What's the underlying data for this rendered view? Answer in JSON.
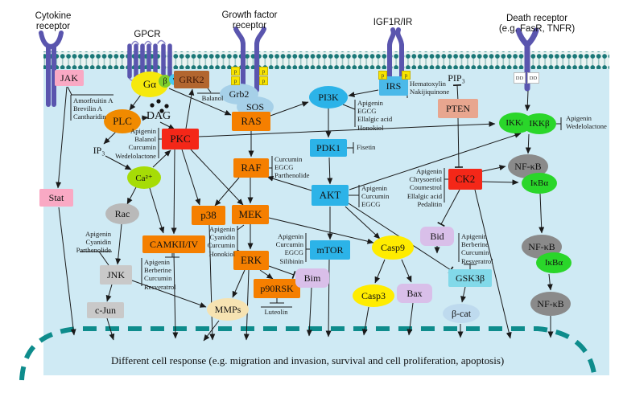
{
  "figure": {
    "bottom_text": "Different cell response (e.g. migration and  invasion, survival and cell proliferation, apoptosis)",
    "cell_color": "#cfeaf4",
    "membrane_head_color": "#1b7878",
    "nucleus_border_color": "#0e8c8c",
    "receptor_color": "#5a55ae"
  },
  "tags": {
    "phospho": "p",
    "death_domain": "DD"
  },
  "receptor_headers": [
    {
      "id": "cytokine",
      "lines": [
        "Cytokine",
        "receptor"
      ]
    },
    {
      "id": "gpcr",
      "lines": [
        "GPCR"
      ]
    },
    {
      "id": "gfr",
      "lines": [
        "Growth factor",
        "receptor"
      ]
    },
    {
      "id": "igf1r",
      "lines": [
        "IGF1R/IR"
      ]
    },
    {
      "id": "death",
      "lines": [
        "Death receptor",
        "(e.g. FasR, TNFR)"
      ]
    }
  ],
  "nodes": [
    {
      "id": "jak",
      "label": "JAK",
      "color": "#f9a9c4",
      "shape": "box"
    },
    {
      "id": "stat",
      "label": "Stat",
      "color": "#f9a9c4",
      "shape": "box"
    },
    {
      "id": "galpha",
      "label": "Gα",
      "color": "#f6e90c",
      "shape": "ellipse"
    },
    {
      "id": "gbeta",
      "label": "β",
      "color": "#7fd02c",
      "shape": "ellipse"
    },
    {
      "id": "ggamma",
      "label": "γ",
      "color": "#49c9ef",
      "shape": "ellipse"
    },
    {
      "id": "grk2",
      "label": "GRK2",
      "color": "#b2662f",
      "shape": "box"
    },
    {
      "id": "plc",
      "label": "PLC",
      "color": "#f08a00",
      "shape": "ellipse"
    },
    {
      "id": "dag",
      "label": "DAG",
      "color": "",
      "shape": "text"
    },
    {
      "id": "ip3",
      "label": "IP₃",
      "color": "",
      "shape": "text"
    },
    {
      "id": "pip3",
      "label": "PIP₃",
      "color": "",
      "shape": "text"
    },
    {
      "id": "pkc",
      "label": "PKC",
      "color": "#f42718",
      "shape": "box"
    },
    {
      "id": "camk",
      "label": "CAMKII/IV",
      "color": "#f57f00",
      "shape": "box"
    },
    {
      "id": "ca",
      "label": "Ca²⁺",
      "color": "#a6dc06",
      "shape": "ellipse"
    },
    {
      "id": "rac",
      "label": "Rac",
      "color": "#b9b9b9",
      "shape": "ellipse"
    },
    {
      "id": "jnk",
      "label": "JNK",
      "color": "#c9c9c9",
      "shape": "box"
    },
    {
      "id": "cjun",
      "label": "c-Jun",
      "color": "#c9c9c9",
      "shape": "box"
    },
    {
      "id": "grb2",
      "label": "Grb2",
      "color": "#a6d0e8",
      "shape": "ellipse"
    },
    {
      "id": "sos",
      "label": "SOS",
      "color": "#a6d0e8",
      "shape": "ellipse"
    },
    {
      "id": "ras",
      "label": "RAS",
      "color": "#f57f00",
      "shape": "box"
    },
    {
      "id": "raf",
      "label": "RAF",
      "color": "#f57f00",
      "shape": "box"
    },
    {
      "id": "mek",
      "label": "MEK",
      "color": "#f57f00",
      "shape": "box"
    },
    {
      "id": "erk",
      "label": "ERK",
      "color": "#f57f00",
      "shape": "box"
    },
    {
      "id": "p38",
      "label": "p38",
      "color": "#f57f00",
      "shape": "box"
    },
    {
      "id": "p90rsk",
      "label": "p90RSK",
      "color": "#f57f00",
      "shape": "box"
    },
    {
      "id": "mmps",
      "label": "MMPs",
      "color": "#f6e3b2",
      "shape": "ellipse"
    },
    {
      "id": "pi3k",
      "label": "PI3K",
      "color": "#2cb3e8",
      "shape": "ellipse"
    },
    {
      "id": "pdk1",
      "label": "PDK1",
      "color": "#2cb3e8",
      "shape": "box"
    },
    {
      "id": "akt",
      "label": "AKT",
      "color": "#2cb3e8",
      "shape": "box"
    },
    {
      "id": "mtor",
      "label": "mTOR",
      "color": "#2cb3e8",
      "shape": "box"
    },
    {
      "id": "irs",
      "label": "IRS",
      "color": "#4ab9e9",
      "shape": "box"
    },
    {
      "id": "pten",
      "label": "PTEN",
      "color": "#e8a68f",
      "shape": "box"
    },
    {
      "id": "ck2",
      "label": "CK2",
      "color": "#f42718",
      "shape": "box"
    },
    {
      "id": "bid",
      "label": "Bid",
      "color": "#d9bfe9",
      "shape": "round"
    },
    {
      "id": "gsk3b",
      "label": "GSK3β",
      "color": "#82d9e9",
      "shape": "box"
    },
    {
      "id": "bcat",
      "label": "β-cat",
      "color": "#bedaee",
      "shape": "ellipse"
    },
    {
      "id": "casp9",
      "label": "Casp9",
      "color": "#ffec00",
      "shape": "ellipse"
    },
    {
      "id": "casp3",
      "label": "Casp3",
      "color": "#ffec00",
      "shape": "ellipse"
    },
    {
      "id": "bax",
      "label": "Bax",
      "color": "#d9bfe9",
      "shape": "round"
    },
    {
      "id": "bim",
      "label": "Bim",
      "color": "#d9bfe9",
      "shape": "round"
    },
    {
      "id": "ikka",
      "label": "IKKα",
      "color": "#2ad62a",
      "shape": "ellipse"
    },
    {
      "id": "ikkb",
      "label": "IKKβ",
      "color": "#2ad62a",
      "shape": "ellipse"
    },
    {
      "id": "nfkb1",
      "label": "NF-κB",
      "color": "#8a8a8a",
      "shape": "ellipse"
    },
    {
      "id": "ikba1",
      "label": "IκBα",
      "color": "#2ad62a",
      "shape": "ellipse"
    },
    {
      "id": "nfkb2",
      "label": "NF-κB",
      "color": "#8a8a8a",
      "shape": "ellipse"
    },
    {
      "id": "ikba2",
      "label": "IκBα",
      "color": "#2ad62a",
      "shape": "ellipse"
    },
    {
      "id": "nfkb3",
      "label": "NF-κB",
      "color": "#8a8a8a",
      "shape": "ellipse"
    }
  ],
  "inhibitors": [
    {
      "id": "jak_inh",
      "target": "JAK",
      "drugs": [
        "Amorfruitin A",
        "Brevilin A",
        "Cantharidin"
      ]
    },
    {
      "id": "pkc_inh",
      "target": "PKC",
      "drugs": [
        "Apigenin",
        "Balanol",
        "Curcumin",
        "Wedelolactone"
      ]
    },
    {
      "id": "grk2_inh",
      "target": "GRK2",
      "drugs": [
        "Balanol"
      ]
    },
    {
      "id": "pi3k_inh",
      "target": "PI3K",
      "drugs": [
        "Apigenin",
        "EGCG",
        "Ellalgic acid",
        "Honokiol"
      ]
    },
    {
      "id": "pdk1_inh",
      "target": "PDK1",
      "drugs": [
        "Fisetin"
      ]
    },
    {
      "id": "irs_inh",
      "target": "IRS",
      "drugs": [
        "Hematoxylin",
        "Nakijiquinone"
      ]
    },
    {
      "id": "akt_inh",
      "target": "AKT",
      "drugs": [
        "Apigenin",
        "Curcumin",
        "EGCG"
      ]
    },
    {
      "id": "mtor_inh",
      "target": "mTOR",
      "drugs": [
        "Apigenin",
        "Curcumin",
        "EGCG",
        "Silibinin"
      ]
    },
    {
      "id": "raf_inh",
      "target": "RAF",
      "drugs": [
        "Curcumin",
        "EGCG",
        "Parthenolide"
      ]
    },
    {
      "id": "mekerk_inh",
      "target": "MEK/ERK",
      "drugs": [
        "Apigenin",
        "Cyanidin",
        "Curcumin",
        "Honokiol"
      ]
    },
    {
      "id": "p90_inh",
      "target": "p90RSK",
      "drugs": [
        "Luteolin"
      ]
    },
    {
      "id": "jnk_inh",
      "target": "JNK",
      "drugs": [
        "Apigenin",
        "Cyanidin",
        "Parthenolide"
      ]
    },
    {
      "id": "camk_inh",
      "target": "CAMKII/IV",
      "drugs": [
        "Apigenin",
        "Berberine",
        "Curcumin",
        "Resveratrol"
      ]
    },
    {
      "id": "ck2_inh",
      "target": "CK2",
      "drugs": [
        "Apigenin",
        "Chrysoeriol",
        "Coumestrol",
        "Ellalgic acid",
        "Pedalitin"
      ]
    },
    {
      "id": "gsk_inh",
      "target": "GSK3β",
      "drugs": [
        "Apigenin",
        "Berberine",
        "Curcumin",
        "Resveratrol"
      ]
    },
    {
      "id": "ikk_inh",
      "target": "IKKβ",
      "drugs": [
        "Apigenin",
        "Wedelolactone"
      ]
    }
  ]
}
